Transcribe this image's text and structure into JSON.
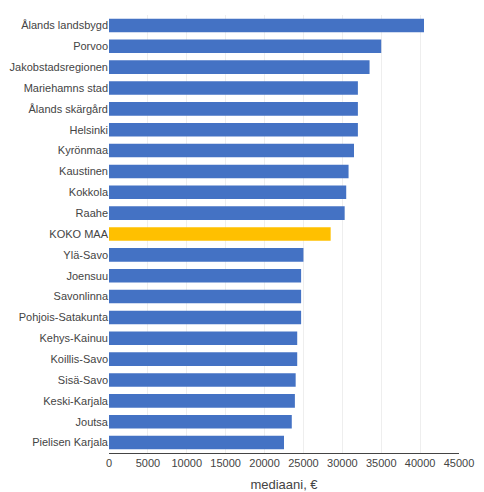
{
  "chart_data": {
    "type": "bar",
    "orientation": "horizontal",
    "categories": [
      "Ålands landsbygd",
      "Porvoo",
      "Jakobstadsregionen",
      "Mariehamns stad",
      "Ålands skärgård",
      "Helsinki",
      "Kyrönmaa",
      "Kaustinen",
      "Kokkola",
      "Raahe",
      "KOKO MAA",
      "Ylä-Savo",
      "Joensuu",
      "Savonlinna",
      "Pohjois-Satakunta",
      "Kehys-Kainuu",
      "Koillis-Savo",
      "Sisä-Savo",
      "Keski-Karjala",
      "Joutsa",
      "Pielisen Karjala"
    ],
    "values": [
      40500,
      35000,
      33500,
      32000,
      32000,
      32000,
      31500,
      30800,
      30500,
      30300,
      28500,
      25000,
      24700,
      24700,
      24700,
      24200,
      24200,
      24000,
      23900,
      23500,
      22500
    ],
    "colors": [
      "#4472C4",
      "#4472C4",
      "#4472C4",
      "#4472C4",
      "#4472C4",
      "#4472C4",
      "#4472C4",
      "#4472C4",
      "#4472C4",
      "#4472C4",
      "#FFC000",
      "#4472C4",
      "#4472C4",
      "#4472C4",
      "#4472C4",
      "#4472C4",
      "#4472C4",
      "#4472C4",
      "#4472C4",
      "#4472C4",
      "#4472C4"
    ],
    "xlabel": "mediaani, €",
    "xlim": [
      0,
      45000
    ],
    "xticks": [
      0,
      5000,
      10000,
      15000,
      20000,
      25000,
      30000,
      35000,
      40000,
      45000
    ],
    "grid": true
  }
}
